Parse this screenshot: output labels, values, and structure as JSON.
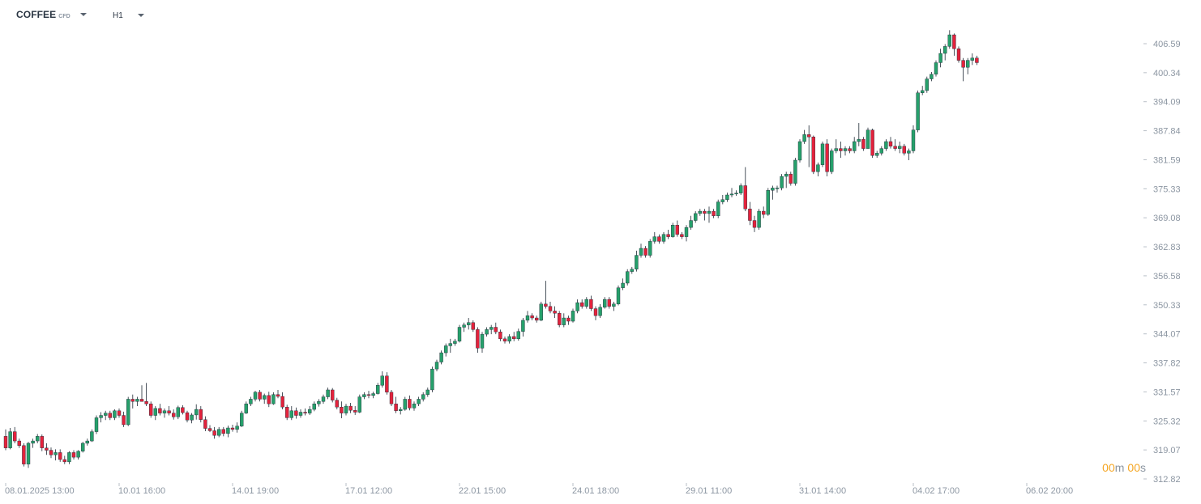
{
  "toolbar": {
    "symbol": "COFFEE",
    "symbol_type": "CFD",
    "timeframe": "H1",
    "caret_icon": "chevron-down-icon"
  },
  "countdown": {
    "minutes": "00",
    "minutes_unit": "m",
    "seconds": "00",
    "seconds_unit": "s"
  },
  "colors": {
    "up": "#26a06b",
    "down": "#e3223c",
    "wick": "#1f2a36",
    "axis_text": "#8c96a2",
    "countdown": "#f5a623"
  },
  "chart_data": {
    "type": "candlestick",
    "title": "",
    "xlabel": "",
    "ylabel": "",
    "ylim": [
      312.82,
      409.0
    ],
    "yticks": [
      312.82,
      319.07,
      325.32,
      331.57,
      337.82,
      344.07,
      350.33,
      356.58,
      362.83,
      369.08,
      375.33,
      381.59,
      387.84,
      394.09,
      400.34,
      406.59
    ],
    "xticks": [
      {
        "index": 0,
        "label": "08.01.2025  13:00"
      },
      {
        "index": 25,
        "label": "10.01  16:00"
      },
      {
        "index": 50,
        "label": "14.01  19:00"
      },
      {
        "index": 75,
        "label": "17.01  12:00"
      },
      {
        "index": 100,
        "label": "22.01  15:00"
      },
      {
        "index": 125,
        "label": "24.01  18:00"
      },
      {
        "index": 150,
        "label": "29.01  11:00"
      },
      {
        "index": 175,
        "label": "31.01  14:00"
      },
      {
        "index": 200,
        "label": "04.02  17:00"
      },
      {
        "index": 225,
        "label": "06.02  20:00"
      }
    ],
    "grid": false,
    "candles": [
      [
        322.0,
        323.5,
        319.0,
        319.5
      ],
      [
        319.5,
        323.8,
        319.2,
        323.0
      ],
      [
        323.0,
        324.0,
        320.5,
        321.0
      ],
      [
        321.0,
        321.5,
        319.5,
        320.0
      ],
      [
        320.0,
        320.5,
        315.5,
        316.0
      ],
      [
        316.0,
        320.8,
        315.2,
        320.5
      ],
      [
        320.5,
        321.5,
        319.5,
        321.0
      ],
      [
        321.0,
        322.5,
        320.5,
        322.0
      ],
      [
        322.0,
        322.4,
        318.8,
        319.5
      ],
      [
        319.5,
        320.5,
        318.0,
        319.0
      ],
      [
        319.0,
        319.6,
        317.3,
        318.0
      ],
      [
        318.0,
        319.2,
        316.8,
        318.5
      ],
      [
        318.5,
        319.2,
        316.5,
        317.0
      ],
      [
        317.0,
        317.8,
        316.0,
        316.5
      ],
      [
        316.5,
        318.8,
        316.0,
        318.5
      ],
      [
        318.5,
        319.0,
        317.0,
        317.5
      ],
      [
        317.5,
        319.0,
        317.0,
        318.8
      ],
      [
        318.8,
        320.8,
        318.5,
        320.5
      ],
      [
        320.5,
        321.5,
        320.0,
        321.0
      ],
      [
        321.0,
        323.5,
        320.8,
        323.0
      ],
      [
        323.0,
        326.5,
        322.5,
        326.0
      ],
      [
        326.0,
        327.2,
        325.0,
        326.5
      ],
      [
        326.5,
        327.5,
        325.5,
        327.0
      ],
      [
        327.0,
        327.5,
        325.5,
        326.0
      ],
      [
        326.0,
        327.8,
        325.5,
        327.5
      ],
      [
        327.5,
        328.0,
        326.0,
        326.5
      ],
      [
        326.5,
        327.3,
        324.0,
        324.5
      ],
      [
        324.5,
        330.5,
        324.2,
        330.0
      ],
      [
        330.0,
        331.0,
        328.0,
        329.5
      ],
      [
        329.5,
        330.5,
        328.5,
        330.0
      ],
      [
        330.0,
        333.0,
        329.5,
        329.5
      ],
      [
        329.5,
        333.5,
        328.5,
        329.0
      ],
      [
        329.0,
        329.5,
        326.0,
        326.5
      ],
      [
        326.5,
        328.5,
        325.5,
        328.0
      ],
      [
        328.0,
        329.0,
        326.5,
        327.0
      ],
      [
        327.0,
        328.0,
        326.0,
        327.5
      ],
      [
        327.5,
        328.5,
        326.5,
        327.0
      ],
      [
        327.0,
        327.8,
        325.6,
        326.2
      ],
      [
        326.2,
        328.6,
        325.7,
        328.2
      ],
      [
        328.2,
        328.7,
        326.7,
        327.1
      ],
      [
        327.1,
        327.5,
        325.0,
        325.5
      ],
      [
        325.5,
        327.0,
        324.8,
        326.6
      ],
      [
        326.6,
        328.9,
        325.6,
        327.8
      ],
      [
        327.8,
        328.5,
        325.0,
        325.6
      ],
      [
        325.6,
        326.3,
        323.1,
        323.7
      ],
      [
        323.7,
        324.4,
        322.9,
        323.2
      ],
      [
        323.2,
        324.0,
        321.5,
        322.2
      ],
      [
        322.2,
        324.0,
        321.8,
        323.5
      ],
      [
        323.5,
        324.0,
        322.0,
        322.6
      ],
      [
        322.6,
        324.3,
        321.8,
        323.8
      ],
      [
        323.8,
        324.5,
        323.0,
        323.5
      ],
      [
        323.5,
        325.0,
        322.8,
        324.2
      ],
      [
        324.2,
        327.5,
        324.0,
        327.0
      ],
      [
        327.0,
        329.5,
        326.8,
        329.0
      ],
      [
        329.0,
        330.5,
        328.5,
        330.0
      ],
      [
        330.0,
        331.8,
        329.5,
        331.5
      ],
      [
        331.5,
        332.0,
        329.5,
        330.0
      ],
      [
        330.0,
        331.2,
        329.0,
        330.8
      ],
      [
        330.8,
        331.6,
        328.3,
        329.0
      ],
      [
        329.0,
        331.5,
        328.8,
        331.0
      ],
      [
        331.0,
        332.0,
        330.2,
        330.6
      ],
      [
        330.6,
        331.5,
        327.8,
        328.3
      ],
      [
        328.3,
        328.8,
        325.5,
        326.0
      ],
      [
        326.0,
        328.5,
        325.5,
        327.5
      ],
      [
        327.5,
        328.2,
        325.8,
        326.5
      ],
      [
        326.5,
        327.8,
        326.0,
        327.2
      ],
      [
        327.2,
        328.0,
        326.5,
        327.0
      ],
      [
        327.0,
        328.5,
        326.6,
        327.8
      ],
      [
        327.8,
        329.5,
        327.4,
        329.0
      ],
      [
        329.0,
        330.0,
        328.4,
        329.5
      ],
      [
        329.5,
        331.0,
        329.0,
        330.5
      ],
      [
        330.5,
        332.5,
        330.0,
        332.0
      ],
      [
        332.0,
        332.4,
        329.3,
        329.8
      ],
      [
        329.8,
        330.3,
        327.8,
        328.3
      ],
      [
        328.3,
        329.5,
        325.9,
        327.0
      ],
      [
        327.0,
        329.0,
        326.5,
        328.5
      ],
      [
        328.5,
        329.2,
        327.0,
        327.6
      ],
      [
        327.6,
        328.5,
        326.6,
        327.2
      ],
      [
        327.2,
        331.0,
        327.0,
        330.5
      ],
      [
        330.5,
        331.5,
        330.0,
        331.0
      ],
      [
        331.0,
        331.8,
        330.2,
        330.8
      ],
      [
        330.8,
        331.6,
        330.2,
        331.2
      ],
      [
        331.2,
        333.5,
        331.0,
        333.0
      ],
      [
        333.0,
        336.0,
        332.5,
        335.0
      ],
      [
        335.0,
        335.8,
        331.0,
        331.5
      ],
      [
        331.5,
        332.0,
        328.5,
        329.0
      ],
      [
        329.0,
        330.5,
        327.0,
        327.5
      ],
      [
        327.5,
        328.3,
        326.7,
        327.8
      ],
      [
        327.8,
        330.5,
        327.5,
        330.0
      ],
      [
        330.0,
        330.8,
        327.6,
        328.1
      ],
      [
        328.1,
        329.5,
        327.5,
        329.0
      ],
      [
        329.0,
        330.5,
        328.5,
        330.0
      ],
      [
        330.0,
        331.5,
        329.5,
        331.0
      ],
      [
        331.0,
        332.5,
        330.5,
        332.0
      ],
      [
        332.0,
        337.0,
        331.5,
        336.5
      ],
      [
        336.5,
        338.5,
        336.0,
        338.0
      ],
      [
        338.0,
        340.5,
        337.5,
        340.0
      ],
      [
        340.0,
        342.0,
        339.2,
        341.5
      ],
      [
        341.5,
        343.0,
        340.0,
        342.0
      ],
      [
        342.0,
        343.0,
        341.5,
        342.5
      ],
      [
        342.5,
        346.0,
        342.2,
        345.5
      ],
      [
        345.5,
        346.5,
        344.5,
        346.0
      ],
      [
        346.0,
        347.5,
        345.0,
        346.5
      ],
      [
        346.5,
        347.0,
        344.5,
        345.0
      ],
      [
        345.0,
        345.5,
        340.0,
        341.0
      ],
      [
        341.0,
        344.5,
        340.0,
        344.0
      ],
      [
        344.0,
        345.5,
        343.5,
        345.0
      ],
      [
        345.0,
        346.0,
        344.0,
        345.5
      ],
      [
        345.5,
        346.5,
        344.0,
        344.5
      ],
      [
        344.5,
        345.0,
        342.5,
        343.0
      ],
      [
        343.0,
        343.5,
        342.0,
        342.5
      ],
      [
        342.5,
        344.0,
        342.0,
        343.5
      ],
      [
        343.5,
        344.5,
        342.5,
        343.0
      ],
      [
        343.0,
        345.2,
        342.6,
        344.6
      ],
      [
        344.6,
        347.5,
        343.5,
        347.0
      ],
      [
        347.0,
        349.0,
        346.5,
        348.0
      ],
      [
        348.0,
        348.5,
        347.0,
        347.5
      ],
      [
        347.5,
        348.0,
        346.5,
        347.0
      ],
      [
        347.0,
        351.0,
        346.8,
        350.5
      ],
      [
        350.5,
        355.5,
        349.5,
        350.0
      ],
      [
        350.0,
        351.0,
        348.5,
        349.0
      ],
      [
        349.0,
        350.0,
        347.5,
        348.5
      ],
      [
        348.5,
        349.0,
        345.5,
        346.0
      ],
      [
        346.0,
        348.5,
        345.5,
        347.5
      ],
      [
        347.5,
        348.0,
        346.0,
        346.8
      ],
      [
        346.8,
        349.5,
        346.5,
        349.0
      ],
      [
        349.0,
        351.5,
        348.5,
        350.8
      ],
      [
        350.8,
        351.5,
        349.5,
        350.0
      ],
      [
        350.0,
        352.0,
        349.5,
        351.5
      ],
      [
        351.5,
        352.3,
        349.0,
        349.5
      ],
      [
        349.5,
        350.0,
        347.0,
        348.0
      ],
      [
        348.0,
        350.5,
        347.5,
        349.8
      ],
      [
        349.8,
        352.0,
        349.5,
        351.5
      ],
      [
        351.5,
        352.0,
        349.5,
        350.0
      ],
      [
        350.0,
        351.0,
        349.0,
        350.5
      ],
      [
        350.5,
        354.5,
        350.2,
        354.0
      ],
      [
        354.0,
        356.0,
        353.5,
        355.0
      ],
      [
        355.0,
        358.0,
        354.5,
        357.5
      ],
      [
        357.5,
        358.5,
        357.0,
        358.0
      ],
      [
        358.0,
        362.0,
        357.5,
        361.0
      ],
      [
        361.0,
        363.5,
        360.5,
        362.5
      ],
      [
        362.5,
        363.0,
        360.5,
        361.0
      ],
      [
        361.0,
        364.5,
        360.5,
        364.0
      ],
      [
        364.0,
        366.0,
        363.5,
        365.0
      ],
      [
        365.0,
        365.5,
        363.5,
        364.0
      ],
      [
        364.0,
        366.0,
        363.5,
        365.5
      ],
      [
        365.5,
        366.5,
        364.5,
        365.0
      ],
      [
        365.0,
        368.0,
        364.8,
        367.5
      ],
      [
        367.5,
        368.5,
        365.0,
        365.5
      ],
      [
        365.5,
        366.0,
        364.5,
        365.0
      ],
      [
        365.0,
        367.5,
        364.0,
        367.0
      ],
      [
        367.0,
        369.5,
        366.5,
        368.5
      ],
      [
        368.5,
        370.5,
        368.0,
        370.0
      ],
      [
        370.0,
        371.0,
        369.5,
        370.5
      ],
      [
        370.5,
        371.0,
        368.5,
        370.0
      ],
      [
        370.0,
        371.5,
        368.0,
        370.5
      ],
      [
        370.5,
        371.0,
        369.0,
        369.5
      ],
      [
        369.5,
        373.0,
        369.0,
        372.5
      ],
      [
        372.5,
        374.0,
        372.0,
        373.0
      ],
      [
        373.0,
        374.5,
        372.5,
        374.0
      ],
      [
        374.0,
        375.5,
        373.5,
        374.2
      ],
      [
        374.2,
        375.0,
        373.8,
        374.4
      ],
      [
        374.4,
        376.5,
        374.0,
        376.0
      ],
      [
        376.0,
        380.0,
        370.5,
        371.0
      ],
      [
        371.0,
        372.5,
        367.5,
        368.5
      ],
      [
        368.5,
        369.5,
        366.0,
        367.0
      ],
      [
        367.0,
        371.0,
        366.5,
        370.5
      ],
      [
        370.5,
        371.5,
        369.0,
        369.8
      ],
      [
        369.8,
        375.5,
        369.5,
        375.0
      ],
      [
        375.0,
        376.0,
        373.0,
        375.5
      ],
      [
        375.5,
        376.0,
        374.5,
        375.5
      ],
      [
        375.5,
        378.5,
        375.0,
        378.0
      ],
      [
        378.0,
        379.0,
        375.5,
        378.5
      ],
      [
        378.5,
        379.0,
        376.0,
        376.5
      ],
      [
        376.5,
        382.0,
        376.0,
        381.5
      ],
      [
        381.5,
        386.0,
        381.0,
        385.5
      ],
      [
        385.5,
        388.0,
        385.0,
        387.0
      ],
      [
        387.0,
        389.0,
        380.0,
        386.5
      ],
      [
        386.5,
        386.8,
        378.5,
        379.0
      ],
      [
        379.0,
        381.0,
        378.0,
        380.5
      ],
      [
        380.5,
        385.5,
        380.0,
        385.0
      ],
      [
        385.0,
        386.0,
        378.0,
        379.0
      ],
      [
        379.0,
        384.0,
        378.5,
        383.5
      ],
      [
        383.5,
        386.0,
        383.0,
        384.0
      ],
      [
        384.0,
        385.5,
        382.0,
        383.5
      ],
      [
        383.5,
        384.5,
        382.5,
        384.0
      ],
      [
        384.0,
        384.5,
        383.0,
        383.5
      ],
      [
        383.5,
        386.5,
        383.0,
        385.5
      ],
      [
        385.5,
        389.5,
        384.5,
        386.0
      ],
      [
        386.0,
        386.5,
        383.5,
        384.0
      ],
      [
        384.0,
        388.5,
        384.0,
        388.0
      ],
      [
        388.0,
        388.3,
        382.0,
        382.5
      ],
      [
        382.5,
        383.5,
        382.0,
        383.0
      ],
      [
        383.0,
        384.5,
        382.5,
        384.0
      ],
      [
        384.0,
        386.0,
        383.5,
        385.5
      ],
      [
        385.5,
        386.5,
        384.0,
        384.5
      ],
      [
        384.5,
        386.0,
        383.5,
        384.0
      ],
      [
        384.0,
        385.5,
        383.0,
        384.5
      ],
      [
        384.5,
        385.0,
        382.5,
        383.0
      ],
      [
        383.0,
        384.0,
        381.5,
        383.5
      ],
      [
        383.5,
        389.0,
        383.0,
        388.0
      ],
      [
        388.0,
        396.5,
        387.5,
        396.0
      ],
      [
        396.0,
        397.5,
        395.5,
        396.5
      ],
      [
        396.5,
        399.5,
        396.0,
        399.0
      ],
      [
        399.0,
        400.5,
        398.5,
        400.0
      ],
      [
        400.0,
        403.0,
        399.5,
        402.5
      ],
      [
        402.5,
        405.5,
        401.5,
        404.5
      ],
      [
        404.5,
        406.5,
        403.0,
        406.0
      ],
      [
        406.0,
        409.5,
        405.5,
        408.5
      ],
      [
        408.5,
        408.8,
        404.0,
        405.5
      ],
      [
        405.5,
        406.0,
        402.5,
        403.0
      ],
      [
        403.0,
        403.5,
        398.5,
        401.5
      ],
      [
        401.5,
        403.5,
        400.0,
        403.0
      ],
      [
        403.0,
        404.5,
        402.0,
        403.5
      ],
      [
        403.5,
        404.0,
        402.0,
        402.5
      ]
    ]
  }
}
